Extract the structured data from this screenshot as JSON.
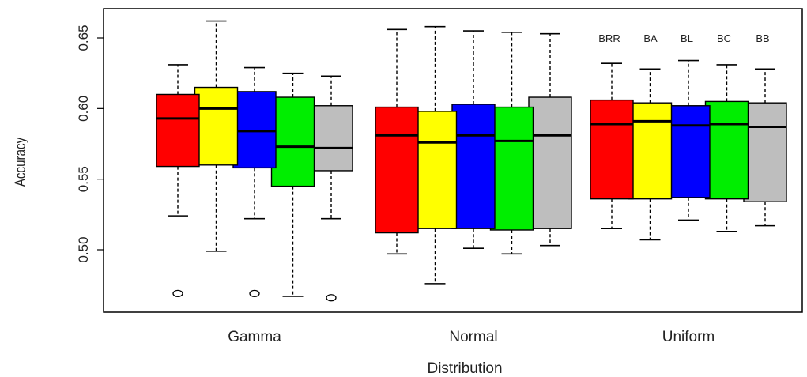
{
  "chart_data": {
    "type": "box",
    "xlabel": "Distribution",
    "ylabel": "Accuracy",
    "ylim": [
      0.455,
      0.676
    ],
    "yticks": [
      "0.50",
      "0.55",
      "0.60",
      "0.65"
    ],
    "ytick_values": [
      0.5,
      0.55,
      0.6,
      0.65
    ],
    "categories": [
      "Gamma",
      "Normal",
      "Uniform"
    ],
    "legend_labels": [
      "BRR",
      "BA",
      "BL",
      "BC",
      "BB"
    ],
    "legend_placement": "top-right, above Uniform group",
    "grid": false,
    "series": [
      {
        "name": "BRR",
        "color": "#ff0000",
        "boxes": [
          {
            "whisker_low": 0.524,
            "q1": 0.559,
            "median": 0.593,
            "q3": 0.61,
            "whisker_high": 0.631,
            "outliers": [
              0.469
            ]
          },
          {
            "whisker_low": 0.497,
            "q1": 0.512,
            "median": 0.581,
            "q3": 0.601,
            "whisker_high": 0.656,
            "outliers": []
          },
          {
            "whisker_low": 0.515,
            "q1": 0.536,
            "median": 0.589,
            "q3": 0.606,
            "whisker_high": 0.632,
            "outliers": []
          }
        ]
      },
      {
        "name": "BA",
        "color": "#ffff00",
        "boxes": [
          {
            "whisker_low": 0.499,
            "q1": 0.56,
            "median": 0.6,
            "q3": 0.615,
            "whisker_high": 0.662,
            "outliers": []
          },
          {
            "whisker_low": 0.476,
            "q1": 0.515,
            "median": 0.576,
            "q3": 0.598,
            "whisker_high": 0.658,
            "outliers": []
          },
          {
            "whisker_low": 0.507,
            "q1": 0.536,
            "median": 0.591,
            "q3": 0.604,
            "whisker_high": 0.628,
            "outliers": []
          }
        ]
      },
      {
        "name": "BL",
        "color": "#0000ff",
        "boxes": [
          {
            "whisker_low": 0.522,
            "q1": 0.558,
            "median": 0.584,
            "q3": 0.612,
            "whisker_high": 0.629,
            "outliers": [
              0.469
            ]
          },
          {
            "whisker_low": 0.501,
            "q1": 0.515,
            "median": 0.581,
            "q3": 0.603,
            "whisker_high": 0.655,
            "outliers": []
          },
          {
            "whisker_low": 0.521,
            "q1": 0.537,
            "median": 0.588,
            "q3": 0.602,
            "whisker_high": 0.634,
            "outliers": []
          }
        ]
      },
      {
        "name": "BC",
        "color": "#00ee00",
        "boxes": [
          {
            "whisker_low": 0.467,
            "q1": 0.545,
            "median": 0.573,
            "q3": 0.608,
            "whisker_high": 0.625,
            "outliers": []
          },
          {
            "whisker_low": 0.497,
            "q1": 0.514,
            "median": 0.577,
            "q3": 0.601,
            "whisker_high": 0.654,
            "outliers": []
          },
          {
            "whisker_low": 0.513,
            "q1": 0.536,
            "median": 0.589,
            "q3": 0.605,
            "whisker_high": 0.631,
            "outliers": []
          }
        ]
      },
      {
        "name": "BB",
        "color": "#bebebe",
        "boxes": [
          {
            "whisker_low": 0.522,
            "q1": 0.556,
            "median": 0.572,
            "q3": 0.602,
            "whisker_high": 0.623,
            "outliers": [
              0.466
            ]
          },
          {
            "whisker_low": 0.503,
            "q1": 0.515,
            "median": 0.581,
            "q3": 0.608,
            "whisker_high": 0.653,
            "outliers": []
          },
          {
            "whisker_low": 0.517,
            "q1": 0.534,
            "median": 0.587,
            "q3": 0.604,
            "whisker_high": 0.628,
            "outliers": []
          }
        ]
      }
    ]
  }
}
